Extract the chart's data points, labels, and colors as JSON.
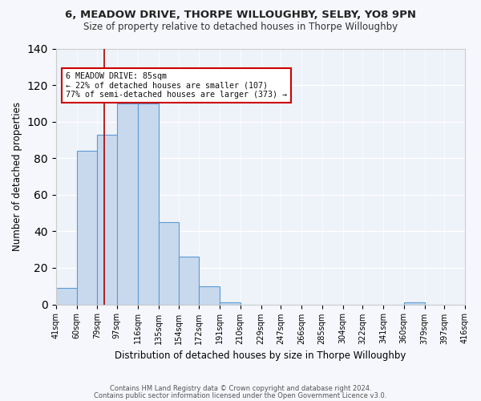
{
  "title1": "6, MEADOW DRIVE, THORPE WILLOUGHBY, SELBY, YO8 9PN",
  "title2": "Size of property relative to detached houses in Thorpe Willoughby",
  "xlabel": "Distribution of detached houses by size in Thorpe Willoughby",
  "ylabel": "Number of detached properties",
  "bin_edges": [
    41,
    60,
    79,
    97,
    116,
    135,
    154,
    172,
    191,
    210,
    229,
    247,
    266,
    285,
    304,
    322,
    341,
    360,
    379,
    397,
    416
  ],
  "bar_heights": [
    9,
    84,
    93,
    110,
    110,
    45,
    26,
    10,
    1,
    0,
    0,
    0,
    0,
    0,
    0,
    0,
    0,
    1,
    0,
    0
  ],
  "bar_color": "#c8d9ee",
  "bar_edge_color": "#5b9bd5",
  "plot_bg_color": "#eef2f9",
  "fig_bg_color": "#f5f7fc",
  "grid_color": "#ffffff",
  "vline_x": 85,
  "vline_color": "#aa0000",
  "annotation_line1": "6 MEADOW DRIVE: 85sqm",
  "annotation_line2": "← 22% of detached houses are smaller (107)",
  "annotation_line3": "77% of semi-detached houses are larger (373) →",
  "annotation_box_color": "#cc0000",
  "ylim": [
    0,
    140
  ],
  "yticks": [
    0,
    20,
    40,
    60,
    80,
    100,
    120,
    140
  ],
  "footnote1": "Contains HM Land Registry data © Crown copyright and database right 2024.",
  "footnote2": "Contains public sector information licensed under the Open Government Licence v3.0."
}
